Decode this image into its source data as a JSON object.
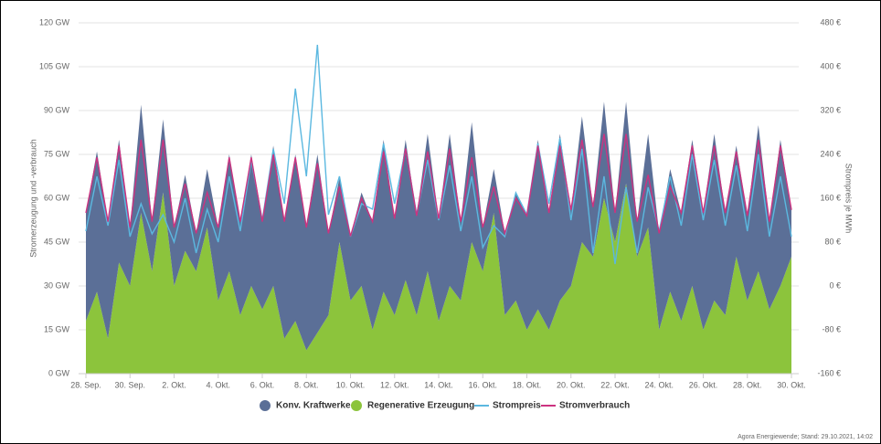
{
  "chart_data": {
    "type": "area",
    "xlabel_left": "Stromerzeugung und -verbrauch",
    "ylabel_right": "Strompreis je MWh",
    "source": "Agora Energiewende; Stand: 29.10.2021, 14:02",
    "categories": [
      "28. Sep.",
      null,
      null,
      null,
      "30. Sep.",
      null,
      null,
      null,
      "2. Okt.",
      null,
      null,
      null,
      "4. Okt.",
      null,
      null,
      null,
      "6. Okt.",
      null,
      null,
      null,
      "8. Okt.",
      null,
      null,
      null,
      "10. Okt.",
      null,
      null,
      null,
      "12. Okt.",
      null,
      null,
      null,
      "14. Okt.",
      null,
      null,
      null,
      "16. Okt.",
      null,
      null,
      null,
      "18. Okt.",
      null,
      null,
      null,
      "20. Okt.",
      null,
      null,
      null,
      "22. Okt.",
      null,
      null,
      null,
      "24. Okt.",
      null,
      null,
      null,
      "26. Okt.",
      null,
      null,
      null,
      "28. Okt.",
      null,
      null,
      null,
      "30. Okt."
    ],
    "ylim": [
      0,
      120
    ],
    "yticks": [
      {
        "value": 0,
        "label": "0 GW"
      },
      {
        "value": 15,
        "label": "15 GW"
      },
      {
        "value": 30,
        "label": "30 GW"
      },
      {
        "value": 45,
        "label": "45 GW"
      },
      {
        "value": 60,
        "label": "60 GW"
      },
      {
        "value": 75,
        "label": "75 GW"
      },
      {
        "value": 90,
        "label": "90 GW"
      },
      {
        "value": 105,
        "label": "105 GW"
      },
      {
        "value": 120,
        "label": "120 GW"
      }
    ],
    "y2lim": [
      -160,
      480
    ],
    "y2ticks": [
      {
        "value": -160,
        "label": "-160 €"
      },
      {
        "value": -80,
        "label": "-80 €"
      },
      {
        "value": 0,
        "label": "0 €"
      },
      {
        "value": 80,
        "label": "80 €"
      },
      {
        "value": 160,
        "label": "160 €"
      },
      {
        "value": 240,
        "label": "240 €"
      },
      {
        "value": 320,
        "label": "320 €"
      },
      {
        "value": 400,
        "label": "400 €"
      },
      {
        "value": 480,
        "label": "480 €"
      }
    ],
    "grid": true,
    "stacked": true,
    "series": [
      {
        "name": "Konv. Kraftwerke",
        "type": "area",
        "color": "#5b6f97",
        "values": [
          37,
          48,
          40,
          42,
          20,
          37,
          17,
          25,
          20,
          26,
          13,
          20,
          25,
          40,
          32,
          45,
          30,
          48,
          40,
          57,
          42,
          61,
          28,
          22,
          22,
          32,
          37,
          52,
          33,
          48,
          34,
          47,
          35,
          52,
          27,
          41,
          15,
          15,
          28,
          37,
          39,
          58,
          40,
          57,
          26,
          43,
          17,
          33,
          10,
          28,
          12,
          32,
          33,
          42,
          37,
          50,
          40,
          57,
          35,
          38,
          29,
          50,
          30,
          50,
          16
        ]
      },
      {
        "name": "Regenerative Erzeugung",
        "type": "area",
        "color": "#8cc43c",
        "values": [
          18,
          28,
          12,
          38,
          30,
          55,
          35,
          62,
          30,
          42,
          35,
          50,
          25,
          35,
          20,
          30,
          22,
          30,
          12,
          18,
          8,
          14,
          20,
          45,
          25,
          30,
          15,
          28,
          20,
          32,
          20,
          35,
          18,
          30,
          25,
          45,
          35,
          55,
          20,
          25,
          15,
          22,
          15,
          25,
          30,
          45,
          40,
          60,
          45,
          65,
          40,
          50,
          15,
          28,
          18,
          30,
          15,
          25,
          20,
          40,
          25,
          35,
          22,
          30,
          40
        ]
      },
      {
        "name": "Strompreis",
        "type": "line",
        "axis": "y2",
        "color": "#5bb8e0",
        "values": [
          100,
          200,
          110,
          230,
          90,
          150,
          95,
          130,
          80,
          160,
          60,
          140,
          80,
          200,
          100,
          230,
          120,
          250,
          150,
          360,
          200,
          440,
          130,
          200,
          90,
          150,
          140,
          260,
          150,
          250,
          130,
          230,
          120,
          220,
          100,
          200,
          70,
          110,
          90,
          170,
          130,
          260,
          150,
          270,
          120,
          250,
          60,
          200,
          40,
          180,
          60,
          180,
          100,
          200,
          110,
          240,
          120,
          230,
          110,
          220,
          100,
          240,
          90,
          200,
          90
        ]
      },
      {
        "name": "Stromverbrauch",
        "type": "line",
        "color": "#cc3380",
        "values": [
          55,
          74,
          52,
          78,
          50,
          80,
          52,
          80,
          50,
          65,
          48,
          62,
          50,
          74,
          52,
          74,
          52,
          75,
          52,
          74,
          50,
          72,
          48,
          64,
          47,
          60,
          52,
          76,
          53,
          77,
          54,
          76,
          53,
          77,
          52,
          74,
          50,
          64,
          48,
          60,
          54,
          78,
          55,
          78,
          56,
          80,
          57,
          82,
          55,
          82,
          52,
          68,
          48,
          64,
          55,
          78,
          55,
          78,
          55,
          76,
          54,
          80,
          52,
          78,
          56
        ]
      }
    ]
  }
}
